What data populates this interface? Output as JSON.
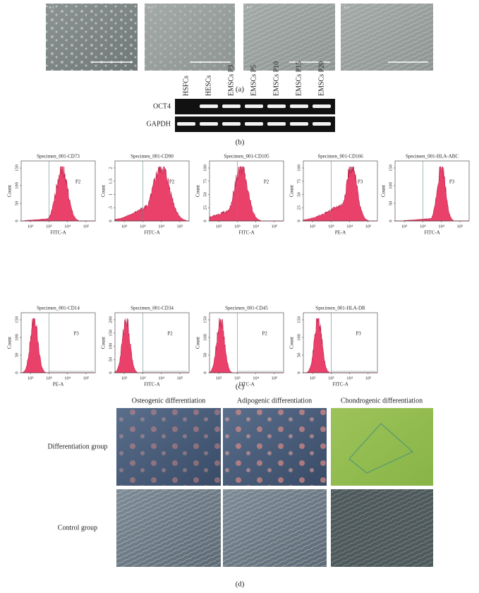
{
  "panels": {
    "a": {
      "caption": "(a)",
      "image_labels": [
        "A-1",
        "A-2",
        "A-3",
        "A-4"
      ]
    },
    "b": {
      "caption": "(b)",
      "lanes": [
        "HSFCs",
        "HESCs",
        "EMSCs P3",
        "EMSCs P5",
        "EMSCs P10",
        "EMSCs P15",
        "EMSCs P20"
      ],
      "rows": [
        "OCT4",
        "GAPDH"
      ]
    },
    "c": {
      "caption": "(c)",
      "xticks": [
        "10²",
        "10³",
        "10⁴",
        "10⁵"
      ],
      "ylabel": "Count",
      "plots": [
        {
          "title": "Specimen_001-CD73",
          "xlabel": "FITC-A",
          "gate": "P2",
          "yticks": [
            "0",
            "50",
            "100",
            "150"
          ]
        },
        {
          "title": "Specimen_001-CD90",
          "xlabel": "FITC-A",
          "gate": "P2",
          "yticks": [
            "0",
            ".5",
            "1",
            "1.5",
            "2"
          ]
        },
        {
          "title": "Specimen_001-CD105",
          "xlabel": "FITC-A",
          "gate": "P2",
          "yticks": [
            "0",
            "25",
            "50",
            "75",
            "100"
          ]
        },
        {
          "title": "Specimen_001-CD166",
          "xlabel": "PE-A",
          "gate": "P3",
          "yticks": [
            "0",
            "25",
            "50",
            "75",
            "100"
          ]
        },
        {
          "title": "Specimen_001-HLA-ABC",
          "xlabel": "FITC-A",
          "gate": "P3",
          "yticks": [
            "0",
            "50",
            "100",
            "150"
          ]
        },
        {
          "title": "Specimen_001-CD14",
          "xlabel": "PE-A",
          "gate": "P3",
          "yticks": [
            "0",
            "50",
            "100",
            "150"
          ]
        },
        {
          "title": "Specimen_001-CD34",
          "xlabel": "FITC-A",
          "gate": "P2",
          "yticks": [
            "0",
            "50",
            "100",
            "150",
            "200"
          ]
        },
        {
          "title": "Specimen_001-CD45",
          "xlabel": "FITC-A",
          "gate": "P2",
          "yticks": [
            "0",
            "50",
            "100",
            "150"
          ]
        },
        {
          "title": "Specimen_001-HLA-DR",
          "xlabel": "FITC-A",
          "gate": "P3",
          "yticks": [
            "0",
            "50",
            "100",
            "150"
          ]
        }
      ]
    },
    "d": {
      "caption": "(d)",
      "columns": [
        "Osteogenic differentiation",
        "Adipogenic differentiation",
        "Chondrogenic differentiation"
      ],
      "rows": [
        "Differentiation group",
        "Control group"
      ]
    }
  }
}
